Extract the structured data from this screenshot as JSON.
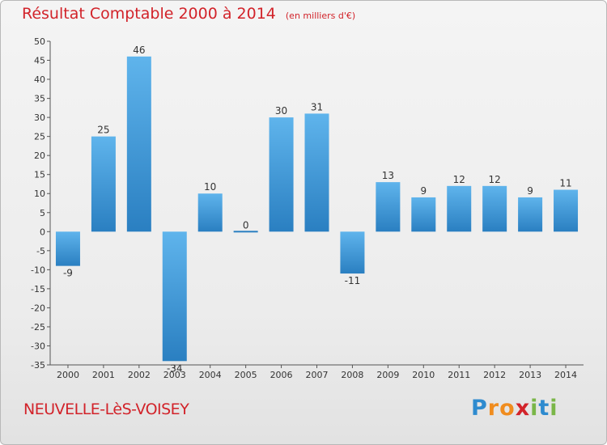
{
  "title": "Résultat Comptable 2000 à 2014",
  "subtitle": "(en milliers d'€)",
  "commune": "NEUVELLE-LèS-VOISEY",
  "logo": {
    "letters": [
      "P",
      "r",
      "o",
      "x",
      "i",
      "t",
      "i"
    ],
    "colors": [
      "#2e8bcf",
      "#f08c1e",
      "#f08c1e",
      "#d2232a",
      "#7ab648",
      "#2e8bcf",
      "#7ab648"
    ]
  },
  "colors": {
    "bar_top": "#5fb4ec",
    "bar_bottom": "#2a7fc1",
    "title": "#d2232a"
  },
  "chart_data": {
    "type": "bar",
    "categories": [
      "2000",
      "2001",
      "2002",
      "2003",
      "2004",
      "2005",
      "2006",
      "2007",
      "2008",
      "2009",
      "2010",
      "2011",
      "2012",
      "2013",
      "2014"
    ],
    "values": [
      -9,
      25,
      46,
      -34,
      10,
      0,
      30,
      31,
      -11,
      13,
      9,
      12,
      12,
      9,
      11
    ],
    "data_labels": [
      "-9",
      "25",
      "46",
      "-34",
      "10",
      "0",
      "30",
      "31",
      "-11",
      "13",
      "9",
      "12",
      "12",
      "9",
      "11"
    ],
    "yticks": [
      50,
      45,
      40,
      35,
      30,
      25,
      20,
      15,
      10,
      5,
      0,
      -5,
      -10,
      -15,
      -20,
      -25,
      -30,
      -35
    ],
    "ylim": [
      -35,
      50
    ],
    "grid": false,
    "title": "Résultat Comptable 2000 à 2014",
    "xlabel": "",
    "ylabel": ""
  }
}
